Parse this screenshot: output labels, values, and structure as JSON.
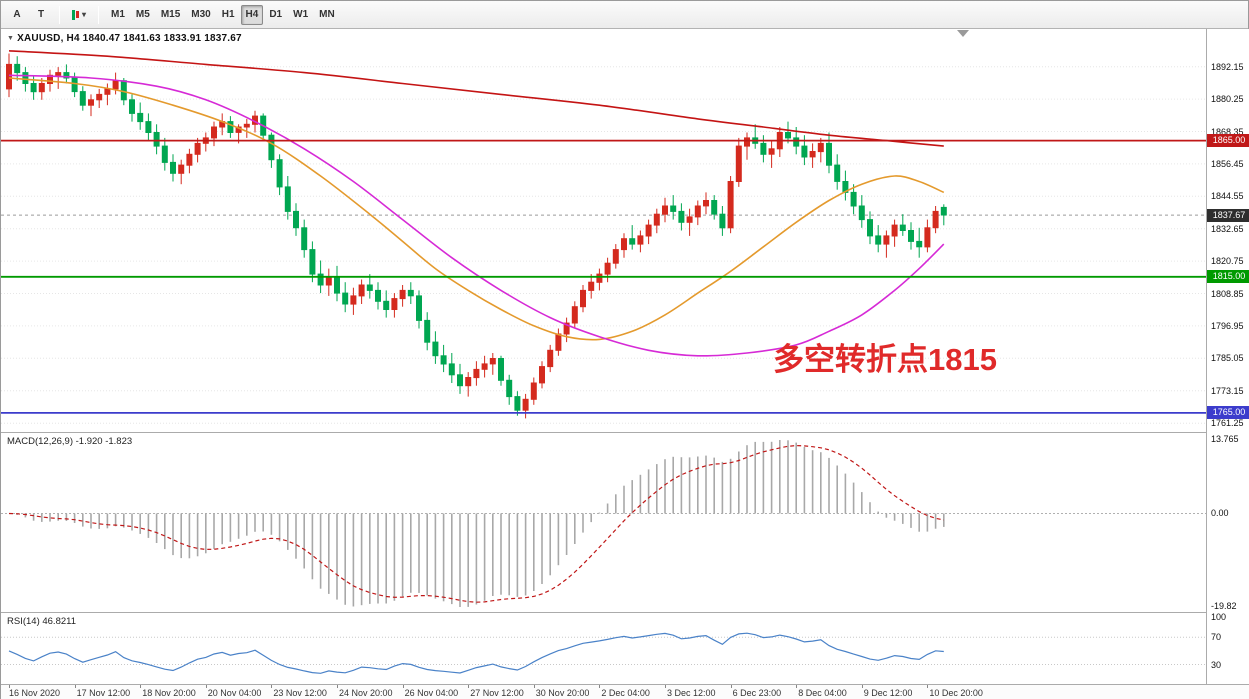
{
  "toolbar": {
    "tool_buttons": [
      {
        "label": "A"
      },
      {
        "label": "T"
      }
    ],
    "caret": "▾",
    "timeframes": [
      "M1",
      "M5",
      "M15",
      "M30",
      "H1",
      "H4",
      "D1",
      "W1",
      "MN"
    ],
    "active_timeframe": "H4"
  },
  "price_chart": {
    "title_marker": "▼",
    "title": "XAUUSD, H4  1840.47 1841.63 1833.91 1837.67",
    "symbol": "XAUUSD",
    "timeframe": "H4",
    "open": "1840.47",
    "high": "1841.63",
    "low": "1833.91",
    "close": "1837.67",
    "annotation": {
      "text": "多空转折点1815",
      "color": "#e02a2a"
    },
    "price_range": [
      1758,
      1906
    ],
    "y_ticks": [
      "1892.15",
      "1880.25",
      "1868.35",
      "1856.45",
      "1844.55",
      "1832.65",
      "1820.75",
      "1808.85",
      "1796.95",
      "1785.05",
      "1773.15",
      "1761.25"
    ],
    "levels": [
      {
        "price": 1865.0,
        "label": "1865.00",
        "color": "#c01818"
      },
      {
        "price": 1815.0,
        "label": "1815.00",
        "color": "#009a00"
      },
      {
        "price": 1765.0,
        "label": "1765.00",
        "color": "#3c3ccc"
      }
    ],
    "current_price": {
      "price": 1837.67,
      "label": "1837.67",
      "badge_color": "#2e2e2e"
    },
    "colors": {
      "up": "#d42a1e",
      "down": "#00a651",
      "ma_fast": "#e49a2d",
      "ma_mid": "#d62ad6",
      "ma_slow": "#c41414",
      "grid": "#e6e6e6"
    }
  },
  "macd_panel": {
    "label": "MACD(12,26,9) -1.920 -1.823",
    "params": "12,26,9",
    "value": "-1.920",
    "signal_value": "-1.823",
    "axis_labels": [
      "13.765",
      "0.00",
      "-19.82"
    ],
    "histogram_color": "#a8a8a8",
    "signal_color": "#c01818"
  },
  "rsi_panel": {
    "label": "RSI(14) 46.8211",
    "period": "14",
    "value": "46.8211",
    "axis_labels": [
      "100",
      "70",
      "30"
    ],
    "levels": [
      70,
      30
    ],
    "line_color": "#4a82c8"
  },
  "time_axis": [
    "16 Nov 2020",
    "17 Nov 12:00",
    "18 Nov 20:00",
    "20 Nov 04:00",
    "23 Nov 12:00",
    "24 Nov 20:00",
    "26 Nov 04:00",
    "27 Nov 12:00",
    "30 Nov 20:00",
    "2 Dec 04:00",
    "3 Dec 12:00",
    "6 Dec 23:00",
    "8 Dec 04:00",
    "9 Dec 12:00",
    "10 Dec 20:00"
  ],
  "chart_data": {
    "type": "candlestick",
    "symbol": "XAUUSD",
    "timeframe": "H4",
    "candles": [
      [
        1884,
        1897,
        1881,
        1893
      ],
      [
        1893,
        1896,
        1887,
        1890
      ],
      [
        1890,
        1892,
        1883,
        1886
      ],
      [
        1886,
        1889,
        1880,
        1883
      ],
      [
        1883,
        1888,
        1880,
        1886
      ],
      [
        1886,
        1891,
        1883,
        1889
      ],
      [
        1889,
        1892,
        1884,
        1890
      ],
      [
        1890,
        1893,
        1886,
        1888
      ],
      [
        1888,
        1890,
        1881,
        1883
      ],
      [
        1883,
        1885,
        1876,
        1878
      ],
      [
        1878,
        1882,
        1874,
        1880
      ],
      [
        1880,
        1884,
        1877,
        1882
      ],
      [
        1882,
        1886,
        1878,
        1884
      ],
      [
        1884,
        1890,
        1882,
        1887
      ],
      [
        1887,
        1888,
        1878,
        1880
      ],
      [
        1880,
        1882,
        1872,
        1875
      ],
      [
        1875,
        1879,
        1869,
        1872
      ],
      [
        1872,
        1875,
        1865,
        1868
      ],
      [
        1868,
        1871,
        1860,
        1863
      ],
      [
        1863,
        1866,
        1854,
        1857
      ],
      [
        1857,
        1860,
        1850,
        1853
      ],
      [
        1853,
        1858,
        1849,
        1856
      ],
      [
        1856,
        1862,
        1853,
        1860
      ],
      [
        1860,
        1866,
        1857,
        1864
      ],
      [
        1864,
        1868,
        1861,
        1866
      ],
      [
        1866,
        1872,
        1863,
        1870
      ],
      [
        1870,
        1875,
        1867,
        1872
      ],
      [
        1872,
        1874,
        1866,
        1868
      ],
      [
        1868,
        1871,
        1864,
        1870
      ],
      [
        1870,
        1873,
        1866,
        1871
      ],
      [
        1871,
        1876,
        1868,
        1874
      ],
      [
        1874,
        1875,
        1865,
        1867
      ],
      [
        1867,
        1868,
        1855,
        1858
      ],
      [
        1858,
        1860,
        1845,
        1848
      ],
      [
        1848,
        1852,
        1836,
        1839
      ],
      [
        1839,
        1842,
        1830,
        1833
      ],
      [
        1833,
        1836,
        1822,
        1825
      ],
      [
        1825,
        1828,
        1813,
        1816
      ],
      [
        1816,
        1821,
        1809,
        1812
      ],
      [
        1812,
        1818,
        1808,
        1815
      ],
      [
        1815,
        1819,
        1806,
        1809
      ],
      [
        1809,
        1813,
        1802,
        1805
      ],
      [
        1805,
        1811,
        1801,
        1808
      ],
      [
        1808,
        1814,
        1805,
        1812
      ],
      [
        1812,
        1816,
        1807,
        1810
      ],
      [
        1810,
        1813,
        1803,
        1806
      ],
      [
        1806,
        1810,
        1800,
        1803
      ],
      [
        1803,
        1809,
        1800,
        1807
      ],
      [
        1807,
        1812,
        1804,
        1810
      ],
      [
        1810,
        1813,
        1805,
        1808
      ],
      [
        1808,
        1810,
        1796,
        1799
      ],
      [
        1799,
        1802,
        1788,
        1791
      ],
      [
        1791,
        1795,
        1783,
        1786
      ],
      [
        1786,
        1790,
        1780,
        1783
      ],
      [
        1783,
        1787,
        1776,
        1779
      ],
      [
        1779,
        1783,
        1772,
        1775
      ],
      [
        1775,
        1780,
        1771,
        1778
      ],
      [
        1778,
        1784,
        1775,
        1781
      ],
      [
        1781,
        1786,
        1778,
        1783
      ],
      [
        1783,
        1787,
        1779,
        1785
      ],
      [
        1785,
        1786,
        1775,
        1777
      ],
      [
        1777,
        1779,
        1768,
        1771
      ],
      [
        1771,
        1773,
        1764,
        1766
      ],
      [
        1766,
        1772,
        1763,
        1770
      ],
      [
        1770,
        1778,
        1768,
        1776
      ],
      [
        1776,
        1784,
        1774,
        1782
      ],
      [
        1782,
        1790,
        1780,
        1788
      ],
      [
        1788,
        1796,
        1786,
        1794
      ],
      [
        1794,
        1800,
        1791,
        1798
      ],
      [
        1798,
        1806,
        1796,
        1804
      ],
      [
        1804,
        1812,
        1802,
        1810
      ],
      [
        1810,
        1816,
        1807,
        1813
      ],
      [
        1813,
        1818,
        1810,
        1816
      ],
      [
        1816,
        1822,
        1813,
        1820
      ],
      [
        1820,
        1827,
        1818,
        1825
      ],
      [
        1825,
        1831,
        1822,
        1829
      ],
      [
        1829,
        1834,
        1825,
        1827
      ],
      [
        1827,
        1832,
        1824,
        1830
      ],
      [
        1830,
        1836,
        1827,
        1834
      ],
      [
        1834,
        1840,
        1831,
        1838
      ],
      [
        1838,
        1844,
        1835,
        1841
      ],
      [
        1841,
        1845,
        1836,
        1839
      ],
      [
        1839,
        1842,
        1832,
        1835
      ],
      [
        1835,
        1840,
        1830,
        1837
      ],
      [
        1837,
        1843,
        1834,
        1841
      ],
      [
        1841,
        1846,
        1838,
        1843
      ],
      [
        1843,
        1845,
        1836,
        1838
      ],
      [
        1838,
        1841,
        1830,
        1833
      ],
      [
        1833,
        1852,
        1831,
        1850
      ],
      [
        1850,
        1866,
        1848,
        1863
      ],
      [
        1863,
        1868,
        1858,
        1866
      ],
      [
        1866,
        1871,
        1862,
        1864
      ],
      [
        1864,
        1867,
        1857,
        1860
      ],
      [
        1860,
        1865,
        1855,
        1862
      ],
      [
        1862,
        1870,
        1859,
        1868
      ],
      [
        1868,
        1872,
        1864,
        1866
      ],
      [
        1866,
        1870,
        1860,
        1863
      ],
      [
        1863,
        1867,
        1856,
        1859
      ],
      [
        1859,
        1864,
        1855,
        1861
      ],
      [
        1861,
        1866,
        1857,
        1864
      ],
      [
        1864,
        1868,
        1853,
        1856
      ],
      [
        1856,
        1860,
        1847,
        1850
      ],
      [
        1850,
        1854,
        1843,
        1846
      ],
      [
        1846,
        1849,
        1838,
        1841
      ],
      [
        1841,
        1845,
        1833,
        1836
      ],
      [
        1836,
        1839,
        1827,
        1830
      ],
      [
        1830,
        1834,
        1824,
        1827
      ],
      [
        1827,
        1832,
        1822,
        1830
      ],
      [
        1830,
        1836,
        1826,
        1834
      ],
      [
        1834,
        1838,
        1830,
        1832
      ],
      [
        1832,
        1835,
        1825,
        1828
      ],
      [
        1828,
        1833,
        1822,
        1826
      ],
      [
        1826,
        1836,
        1824,
        1833
      ],
      [
        1833,
        1841,
        1831,
        1839
      ],
      [
        1840.47,
        1841.63,
        1833.91,
        1837.67
      ]
    ],
    "moving_averages": {
      "slow": {
        "points": [
          [
            0,
            1898
          ],
          [
            12,
            1896
          ],
          [
            24,
            1893
          ],
          [
            36,
            1890
          ],
          [
            48,
            1886
          ],
          [
            60,
            1882
          ],
          [
            72,
            1878
          ],
          [
            84,
            1873
          ],
          [
            92,
            1870
          ],
          [
            100,
            1867
          ],
          [
            107,
            1865
          ],
          [
            114,
            1863
          ]
        ]
      },
      "mid": {
        "points": [
          [
            0,
            1889
          ],
          [
            10,
            1888
          ],
          [
            18,
            1885
          ],
          [
            24,
            1880
          ],
          [
            30,
            1872
          ],
          [
            36,
            1862
          ],
          [
            42,
            1850
          ],
          [
            48,
            1836
          ],
          [
            54,
            1822
          ],
          [
            60,
            1810
          ],
          [
            66,
            1800
          ],
          [
            72,
            1793
          ],
          [
            78,
            1788
          ],
          [
            84,
            1786
          ],
          [
            90,
            1787
          ],
          [
            96,
            1790
          ],
          [
            100,
            1795
          ],
          [
            104,
            1801
          ],
          [
            108,
            1810
          ],
          [
            111,
            1818
          ],
          [
            114,
            1827
          ]
        ]
      },
      "fast": {
        "points": [
          [
            0,
            1888
          ],
          [
            8,
            1886
          ],
          [
            14,
            1883
          ],
          [
            20,
            1878
          ],
          [
            26,
            1872
          ],
          [
            32,
            1864
          ],
          [
            38,
            1852
          ],
          [
            44,
            1838
          ],
          [
            48,
            1828
          ],
          [
            52,
            1818
          ],
          [
            56,
            1810
          ],
          [
            60,
            1803
          ],
          [
            64,
            1797
          ],
          [
            68,
            1793
          ],
          [
            72,
            1792
          ],
          [
            76,
            1795
          ],
          [
            80,
            1801
          ],
          [
            84,
            1809
          ],
          [
            88,
            1817
          ],
          [
            92,
            1826
          ],
          [
            96,
            1835
          ],
          [
            100,
            1843
          ],
          [
            104,
            1849
          ],
          [
            108,
            1852
          ],
          [
            111,
            1850
          ],
          [
            114,
            1846
          ]
        ]
      }
    }
  }
}
